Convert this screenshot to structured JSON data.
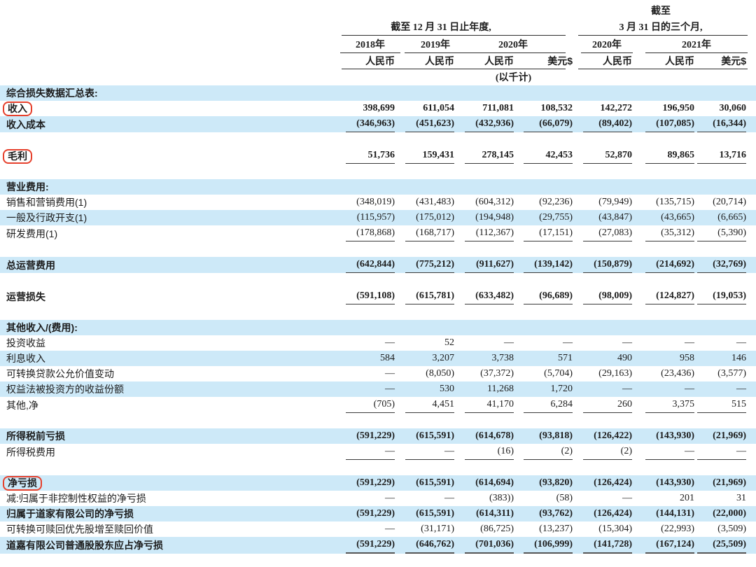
{
  "header": {
    "ended_label": "截至",
    "group1_title": "截至 12 月 31 日止年度,",
    "group2_title": "3 月 31 日的三个月,",
    "years": [
      {
        "label": "2018年"
      },
      {
        "label": "2019年"
      },
      {
        "label": "2020年"
      },
      {
        "label": "2020年"
      },
      {
        "label": "2021年"
      }
    ],
    "currencies": [
      "人民币",
      "人民币",
      "人民币",
      "美元$",
      "人民币",
      "人民币",
      "美元$"
    ],
    "unit_note": "(以千计)"
  },
  "colors": {
    "row_highlight": "#cde9f8",
    "annotation_red": "#e6402c"
  },
  "table": {
    "rows": [
      {
        "label": "综合损失数据汇总表:",
        "bold": true,
        "bg": "blue",
        "values": [
          "",
          "",
          "",
          "",
          "",
          "",
          ""
        ]
      },
      {
        "label": "收入",
        "bold": true,
        "red_box": true,
        "bg": "white",
        "values": [
          "398,699",
          "611,054",
          "711,081",
          "108,532",
          "142,272",
          "196,950",
          "30,060"
        ]
      },
      {
        "label": "收入成本",
        "bold": true,
        "bg": "blue",
        "underline": true,
        "values": [
          "(346,963)",
          "(451,623)",
          "(432,936)",
          "(66,079)",
          "(89,402)",
          "(107,085)",
          "(16,344)"
        ]
      },
      {
        "blank": true
      },
      {
        "label": "毛利",
        "bold": true,
        "red_box": true,
        "bg": "white",
        "underline": true,
        "values": [
          "51,736",
          "159,431",
          "278,145",
          "42,453",
          "52,870",
          "89,865",
          "13,716"
        ]
      },
      {
        "blank": true
      },
      {
        "label": "营业费用:",
        "bold": true,
        "bg": "blue",
        "values": [
          "",
          "",
          "",
          "",
          "",
          "",
          ""
        ]
      },
      {
        "label": "销售和营销费用(1)",
        "bg": "white",
        "values": [
          "(348,019)",
          "(431,483)",
          "(604,312)",
          "(92,236)",
          "(79,949)",
          "(135,715)",
          "(20,714)"
        ]
      },
      {
        "label": "一般及行政开支(1)",
        "bg": "blue",
        "values": [
          "(115,957)",
          "(175,012)",
          "(194,948)",
          "(29,755)",
          "(43,847)",
          "(43,665)",
          "(6,665)"
        ]
      },
      {
        "label": "研发费用(1)",
        "bg": "white",
        "underline": true,
        "values": [
          "(178,868)",
          "(168,717)",
          "(112,367)",
          "(17,151)",
          "(27,083)",
          "(35,312)",
          "(5,390)"
        ]
      },
      {
        "blank": true
      },
      {
        "label": "总运营费用",
        "bold": true,
        "bg": "blue",
        "underline": true,
        "values": [
          "(642,844)",
          "(775,212)",
          "(911,627)",
          "(139,142)",
          "(150,879)",
          "(214,692)",
          "(32,769)"
        ]
      },
      {
        "blank": true
      },
      {
        "label": "运营损失",
        "bold": true,
        "bg": "white",
        "underline": true,
        "values": [
          "(591,108)",
          "(615,781)",
          "(633,482)",
          "(96,689)",
          "(98,009)",
          "(124,827)",
          "(19,053)"
        ]
      },
      {
        "blank": true
      },
      {
        "label": "其他收入/(费用):",
        "bold": true,
        "bg": "blue",
        "values": [
          "",
          "",
          "",
          "",
          "",
          "",
          ""
        ]
      },
      {
        "label": "投资收益",
        "bg": "white",
        "values": [
          "—",
          "52",
          "—",
          "—",
          "—",
          "—",
          "—"
        ]
      },
      {
        "label": "利息收入",
        "bg": "blue",
        "values": [
          "584",
          "3,207",
          "3,738",
          "571",
          "490",
          "958",
          "146"
        ]
      },
      {
        "label": "可转换贷款公允价值变动",
        "bg": "white",
        "values": [
          "—",
          "(8,050)",
          "(37,372)",
          "(5,704)",
          "(29,163)",
          "(23,436)",
          "(3,577)"
        ]
      },
      {
        "label": "权益法被投资方的收益份额",
        "bg": "blue",
        "values": [
          "—",
          "530",
          "11,268",
          "1,720",
          "—",
          "—",
          "—"
        ]
      },
      {
        "label": "其他,净",
        "bg": "white",
        "underline": true,
        "values": [
          "(705)",
          "4,451",
          "41,170",
          "6,284",
          "260",
          "3,375",
          "515"
        ]
      },
      {
        "blank": true
      },
      {
        "label": "所得税前亏损",
        "bold": true,
        "bg": "blue",
        "values": [
          "(591,229)",
          "(615,591)",
          "(614,678)",
          "(93,818)",
          "(126,422)",
          "(143,930)",
          "(21,969)"
        ]
      },
      {
        "label": "所得税费用",
        "bg": "white",
        "underline": true,
        "values": [
          "—",
          "—",
          "(16)",
          "(2)",
          "(2)",
          "—",
          "—"
        ]
      },
      {
        "blank": true
      },
      {
        "label": "净亏损",
        "bold": true,
        "red_box": true,
        "bg": "blue",
        "values": [
          "(591,229)",
          "(615,591)",
          "(614,694)",
          "(93,820)",
          "(126,424)",
          "(143,930)",
          "(21,969)"
        ]
      },
      {
        "label": "减:归属于非控制性权益的净亏损",
        "bg": "white",
        "values": [
          "—",
          "—",
          "(383))",
          "(58)",
          "—",
          "201",
          "31"
        ]
      },
      {
        "label": "归属于道家有限公司的净亏损",
        "bold": true,
        "bg": "blue",
        "values": [
          "(591,229)",
          "(615,591)",
          "(614,311)",
          "(93,762)",
          "(126,424)",
          "(144,131)",
          "(22,000)"
        ]
      },
      {
        "label": "可转换可赎回优先股增至赎回价值",
        "bg": "white",
        "values": [
          "—",
          "(31,171)",
          "(86,725)",
          "(13,237)",
          "(15,304)",
          "(22,993)",
          "(3,509)"
        ]
      },
      {
        "label": "道嘉有限公司普通股股东应占净亏损",
        "bold": true,
        "bg": "blue",
        "underline": true,
        "thick_underline": true,
        "values": [
          "(591,229)",
          "(646,762)",
          "(701,036)",
          "(106,999)",
          "(141,728)",
          "(167,124)",
          "(25,509)"
        ]
      }
    ]
  }
}
